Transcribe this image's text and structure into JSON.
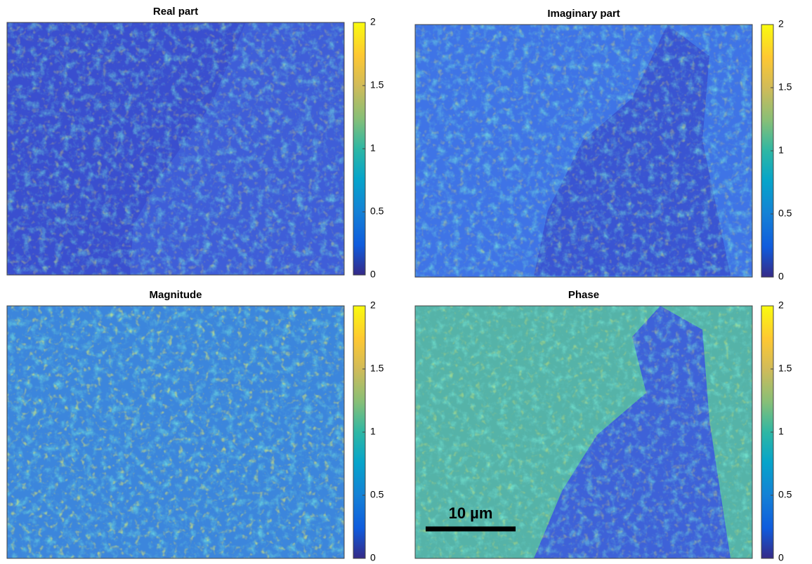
{
  "chart_data": [
    {
      "type": "heatmap",
      "title": "Real part",
      "clim": [
        0,
        2
      ],
      "cticks": [
        0,
        0.5,
        1,
        1.5,
        2
      ]
    },
    {
      "type": "heatmap",
      "title": "Imaginary part",
      "clim": [
        0,
        2
      ],
      "cticks": [
        0,
        0.5,
        1,
        1.5,
        2
      ]
    },
    {
      "type": "heatmap",
      "title": "Magnitude",
      "clim": [
        0,
        2
      ],
      "cticks": [
        0,
        0.5,
        1,
        1.5,
        2
      ]
    },
    {
      "type": "heatmap",
      "title": "Phase",
      "clim": [
        0,
        2
      ],
      "cticks": [
        0,
        0.5,
        1,
        1.5,
        2
      ],
      "annotation": "10 µm"
    }
  ]
}
